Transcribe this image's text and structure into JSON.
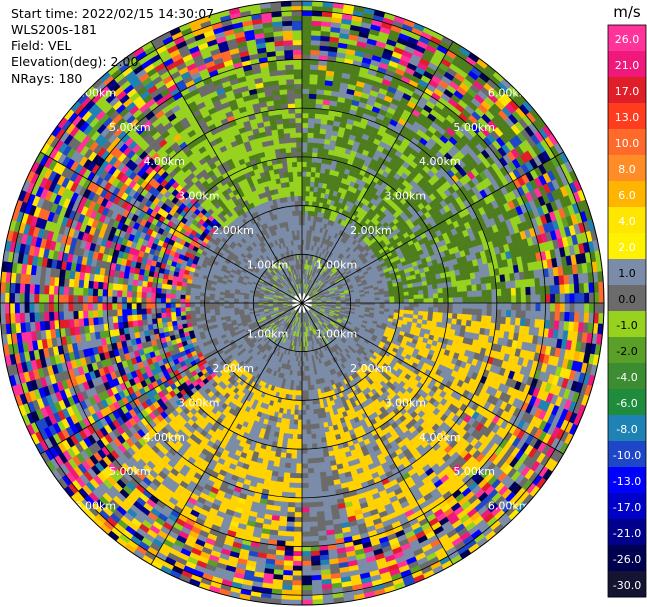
{
  "header": {
    "start_time": "Start time: 2022/02/15 14:30:07",
    "instrument": "WLS200s-181",
    "field": "Field: VEL",
    "elevation": "Elevation(deg): 2.00",
    "nrays": "NRays: 180"
  },
  "chart_data": {
    "type": "heatmap",
    "projection": "polar PPI",
    "field": "VEL",
    "units": "m/s",
    "nrays": 180,
    "range_rings_km": [
      1.0,
      2.0,
      3.0,
      4.0,
      5.0,
      6.0
    ],
    "range_labels": [
      "1.00km",
      "2.00km",
      "3.00km",
      "4.00km",
      "5.00km",
      "6.00km"
    ],
    "max_range_km": 6.2,
    "spokes_deg": [
      0,
      30,
      60,
      90,
      120,
      150,
      180,
      210,
      240,
      270,
      300,
      330
    ],
    "colorbar": {
      "unit_label": "m/s",
      "tick_labels": [
        "26.0",
        "21.0",
        "17.0",
        "13.0",
        "10.0",
        "8.0",
        "6.0",
        "4.0",
        "2.0",
        "1.0",
        "0.0",
        "-1.0",
        "-2.0",
        "-4.0",
        "-6.0",
        "-8.0",
        "-10.0",
        "-13.0",
        "-17.0",
        "-21.0",
        "-26.0",
        "-30.0"
      ],
      "colors": [
        "#ff3399",
        "#f0187a",
        "#e01e2a",
        "#ff3c1e",
        "#ff6a2a",
        "#ff8c26",
        "#ffb400",
        "#ffe600",
        "#fff200",
        "#7a8ca8",
        "#6b6b6b",
        "#96d21e",
        "#5aa028",
        "#3c8c32",
        "#1e8c3c",
        "#1e82b4",
        "#1e46c8",
        "#0000ff",
        "#0000c8",
        "#00008c",
        "#000050",
        "#141432"
      ]
    },
    "sectors": [
      {
        "from": 315,
        "to": 360,
        "dominant": "-2.0",
        "note": "light green band with dark green"
      },
      {
        "from": 0,
        "to": 90,
        "dominant": "-4.0",
        "note": "green (olive) approaching flow"
      },
      {
        "from": 95,
        "to": 170,
        "dominant": "2.0",
        "note": "yellow receding flow"
      },
      {
        "from": 180,
        "to": 230,
        "dominant": "2.0",
        "note": "yellow receding flow"
      },
      {
        "from": 230,
        "to": 315,
        "dominant": "noise",
        "note": "speckled noise beyond 2 km"
      }
    ]
  }
}
